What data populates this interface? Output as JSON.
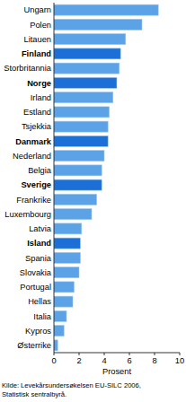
{
  "chart_data": {
    "type": "bar",
    "orientation": "horizontal",
    "categories": [
      "Ungarn",
      "Polen",
      "Litauen",
      "Finland",
      "Storbritannia",
      "Norge",
      "Irland",
      "Estland",
      "Tsjekkia",
      "Danmark",
      "Nederland",
      "Belgia",
      "Sverige",
      "Frankrike",
      "Luxembourg",
      "Latvia",
      "Island",
      "Spania",
      "Slovakia",
      "Portugal",
      "Hellas",
      "Italia",
      "Kypros",
      "Østerrike"
    ],
    "values": [
      8.3,
      7.0,
      5.7,
      5.3,
      5.2,
      5.0,
      4.7,
      4.4,
      4.3,
      4.3,
      4.0,
      3.8,
      3.8,
      3.4,
      3.0,
      2.2,
      2.1,
      2.1,
      2.0,
      1.6,
      1.5,
      1.0,
      0.8,
      0.3
    ],
    "colors": [
      "#5ba3e6",
      "#5ba3e6",
      "#5ba3e6",
      "#1c6fd6",
      "#5ba3e6",
      "#1c6fd6",
      "#5ba3e6",
      "#5ba3e6",
      "#5ba3e6",
      "#1c6fd6",
      "#5ba3e6",
      "#5ba3e6",
      "#1c6fd6",
      "#5ba3e6",
      "#5ba3e6",
      "#5ba3e6",
      "#1c6fd6",
      "#5ba3e6",
      "#5ba3e6",
      "#5ba3e6",
      "#5ba3e6",
      "#5ba3e6",
      "#5ba3e6",
      "#5ba3e6"
    ],
    "x_label": "Prosent",
    "xlim": [
      0,
      10
    ],
    "xticks": [
      0,
      2,
      4,
      6,
      8,
      10
    ],
    "grid": false,
    "annotations": [
      "Kilde: Levekårsundersøkelsen EU-SILC 2006,",
      "Statistisk sentralbyrå."
    ]
  }
}
